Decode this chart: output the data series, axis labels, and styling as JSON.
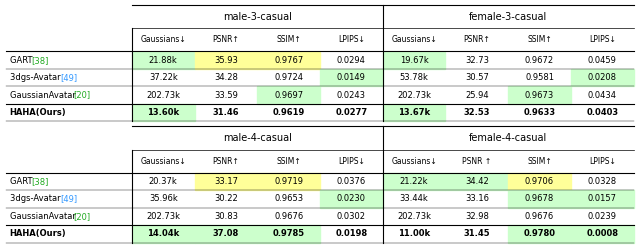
{
  "tables": [
    {
      "title_left": "male-3-casual",
      "title_right": "female-3-casual",
      "col_headers": [
        "Gaussians↓",
        "PSNR↑",
        "SSIM↑",
        "LPIPS↓",
        "Gaussians↓",
        "PSNR↑",
        "SSIM↑",
        "LPIPS↓"
      ],
      "row_labels": [
        "GART [38]",
        "3dgs-Avatar [49]",
        "GaussianAvatar [20]",
        "HAHA(Ours)"
      ],
      "data": [
        [
          "21.88k",
          "35.93",
          "0.9767",
          "0.0294",
          "19.67k",
          "32.73",
          "0.9672",
          "0.0459"
        ],
        [
          "37.22k",
          "34.28",
          "0.9724",
          "0.0149",
          "53.78k",
          "30.57",
          "0.9581",
          "0.0208"
        ],
        [
          "202.73k",
          "33.59",
          "0.9697",
          "0.0243",
          "202.73k",
          "25.94",
          "0.9673",
          "0.0434"
        ],
        [
          "13.60k",
          "31.46",
          "0.9619",
          "0.0277",
          "13.67k",
          "32.53",
          "0.9633",
          "0.0403"
        ]
      ],
      "cell_bg": [
        [
          "#ccffcc",
          "#ffff99",
          "#ffff99",
          "white",
          "#ccffcc",
          "white",
          "white",
          "white"
        ],
        [
          "white",
          "white",
          "white",
          "#ccffcc",
          "white",
          "white",
          "white",
          "#ccffcc"
        ],
        [
          "white",
          "white",
          "#ccffcc",
          "white",
          "white",
          "white",
          "#ccffcc",
          "white"
        ],
        [
          "#ccffcc",
          "white",
          "white",
          "white",
          "#ccffcc",
          "white",
          "white",
          "white"
        ]
      ]
    },
    {
      "title_left": "male-4-casual",
      "title_right": "female-4-casual",
      "col_headers": [
        "Gaussians↓",
        "PSNR↑",
        "SSIM↑",
        "LPIPS↓",
        "Gaussians↓",
        "PSNR ↑",
        "SSIM↑",
        "LPIPS↓"
      ],
      "row_labels": [
        "GART [38]",
        "3dgs-Avatar [49]",
        "GaussianAvatar [20]",
        "HAHA(Ours)"
      ],
      "data": [
        [
          "20.37k",
          "33.17",
          "0.9719",
          "0.0376",
          "21.22k",
          "34.42",
          "0.9706",
          "0.0328"
        ],
        [
          "35.96k",
          "30.22",
          "0.9653",
          "0.0230",
          "33.44k",
          "33.16",
          "0.9678",
          "0.0157"
        ],
        [
          "202.73k",
          "30.83",
          "0.9676",
          "0.0302",
          "202.73k",
          "32.98",
          "0.9676",
          "0.0239"
        ],
        [
          "14.04k",
          "37.08",
          "0.9785",
          "0.0198",
          "11.00k",
          "31.45",
          "0.9780",
          "0.0008"
        ]
      ],
      "cell_bg": [
        [
          "white",
          "#ffff99",
          "#ffff99",
          "white",
          "#ccffcc",
          "#ccffcc",
          "#ffff99",
          "white"
        ],
        [
          "white",
          "white",
          "white",
          "#ccffcc",
          "white",
          "white",
          "#ccffcc",
          "#ccffcc"
        ],
        [
          "white",
          "white",
          "white",
          "white",
          "white",
          "white",
          "white",
          "white"
        ],
        [
          "#ccffcc",
          "#ccffcc",
          "#ccffcc",
          "white",
          "white",
          "white",
          "#ccffcc",
          "#ccffcc"
        ]
      ]
    }
  ],
  "label_ref_colors": {
    "GART [38]": "#22aa22",
    "3dgs-Avatar [49]": "#3399ff",
    "GaussianAvatar [20]": "#22aa22",
    "HAHA(Ours)": "black"
  }
}
